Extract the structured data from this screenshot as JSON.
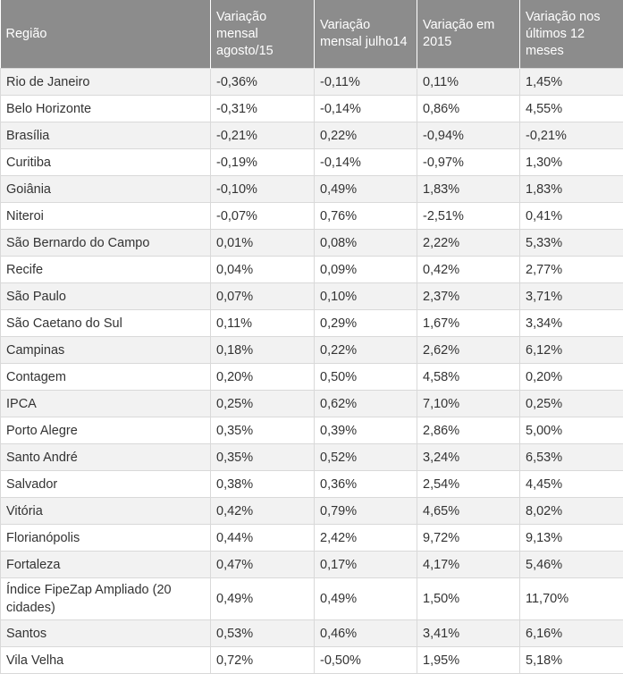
{
  "table": {
    "header": [
      "Região",
      "Variação mensal agosto/15",
      "Variação mensal julho14",
      "Variação em 2015",
      "Variação nos últimos 12 meses"
    ],
    "rows": [
      [
        "Rio de Janeiro",
        "-0,36%",
        "-0,11%",
        "0,11%",
        "1,45%"
      ],
      [
        "Belo Horizonte",
        "-0,31%",
        "-0,14%",
        "0,86%",
        "4,55%"
      ],
      [
        "Brasília",
        "-0,21%",
        "0,22%",
        "-0,94%",
        "-0,21%"
      ],
      [
        "Curitiba",
        "-0,19%",
        "-0,14%",
        "-0,97%",
        "1,30%"
      ],
      [
        "Goiânia",
        "-0,10%",
        "0,49%",
        "1,83%",
        "1,83%"
      ],
      [
        "Niteroi",
        "-0,07%",
        "0,76%",
        "-2,51%",
        "0,41%"
      ],
      [
        "São Bernardo do Campo",
        "0,01%",
        "0,08%",
        "2,22%",
        "5,33%"
      ],
      [
        "Recife",
        "0,04%",
        "0,09%",
        "0,42%",
        "2,77%"
      ],
      [
        "São Paulo",
        "0,07%",
        "0,10%",
        "2,37%",
        "3,71%"
      ],
      [
        "São Caetano do Sul",
        "0,11%",
        "0,29%",
        "1,67%",
        "3,34%"
      ],
      [
        "Campinas",
        "0,18%",
        "0,22%",
        "2,62%",
        "6,12%"
      ],
      [
        "Contagem",
        "0,20%",
        "0,50%",
        "4,58%",
        "0,20%"
      ],
      [
        "IPCA",
        "0,25%",
        "0,62%",
        "7,10%",
        "0,25%"
      ],
      [
        "Porto Alegre",
        "0,35%",
        "0,39%",
        "2,86%",
        "5,00%"
      ],
      [
        "Santo André",
        "0,35%",
        "0,52%",
        "3,24%",
        "6,53%"
      ],
      [
        "Salvador",
        "0,38%",
        "0,36%",
        "2,54%",
        "4,45%"
      ],
      [
        "Vitória",
        "0,42%",
        "0,79%",
        "4,65%",
        "8,02%"
      ],
      [
        "Florianópolis",
        "0,44%",
        "2,42%",
        "9,72%",
        "9,13%"
      ],
      [
        "Fortaleza",
        "0,47%",
        "0,17%",
        "4,17%",
        "5,46%"
      ],
      [
        "Índice FipeZap Ampliado (20 cidades)",
        "0,49%",
        "0,49%",
        "1,50%",
        "11,70%"
      ],
      [
        "Santos",
        "0,53%",
        "0,46%",
        "3,41%",
        "6,16%"
      ],
      [
        "Vila Velha",
        "0,72%",
        "-0,50%",
        "1,95%",
        "5,18%"
      ]
    ]
  }
}
